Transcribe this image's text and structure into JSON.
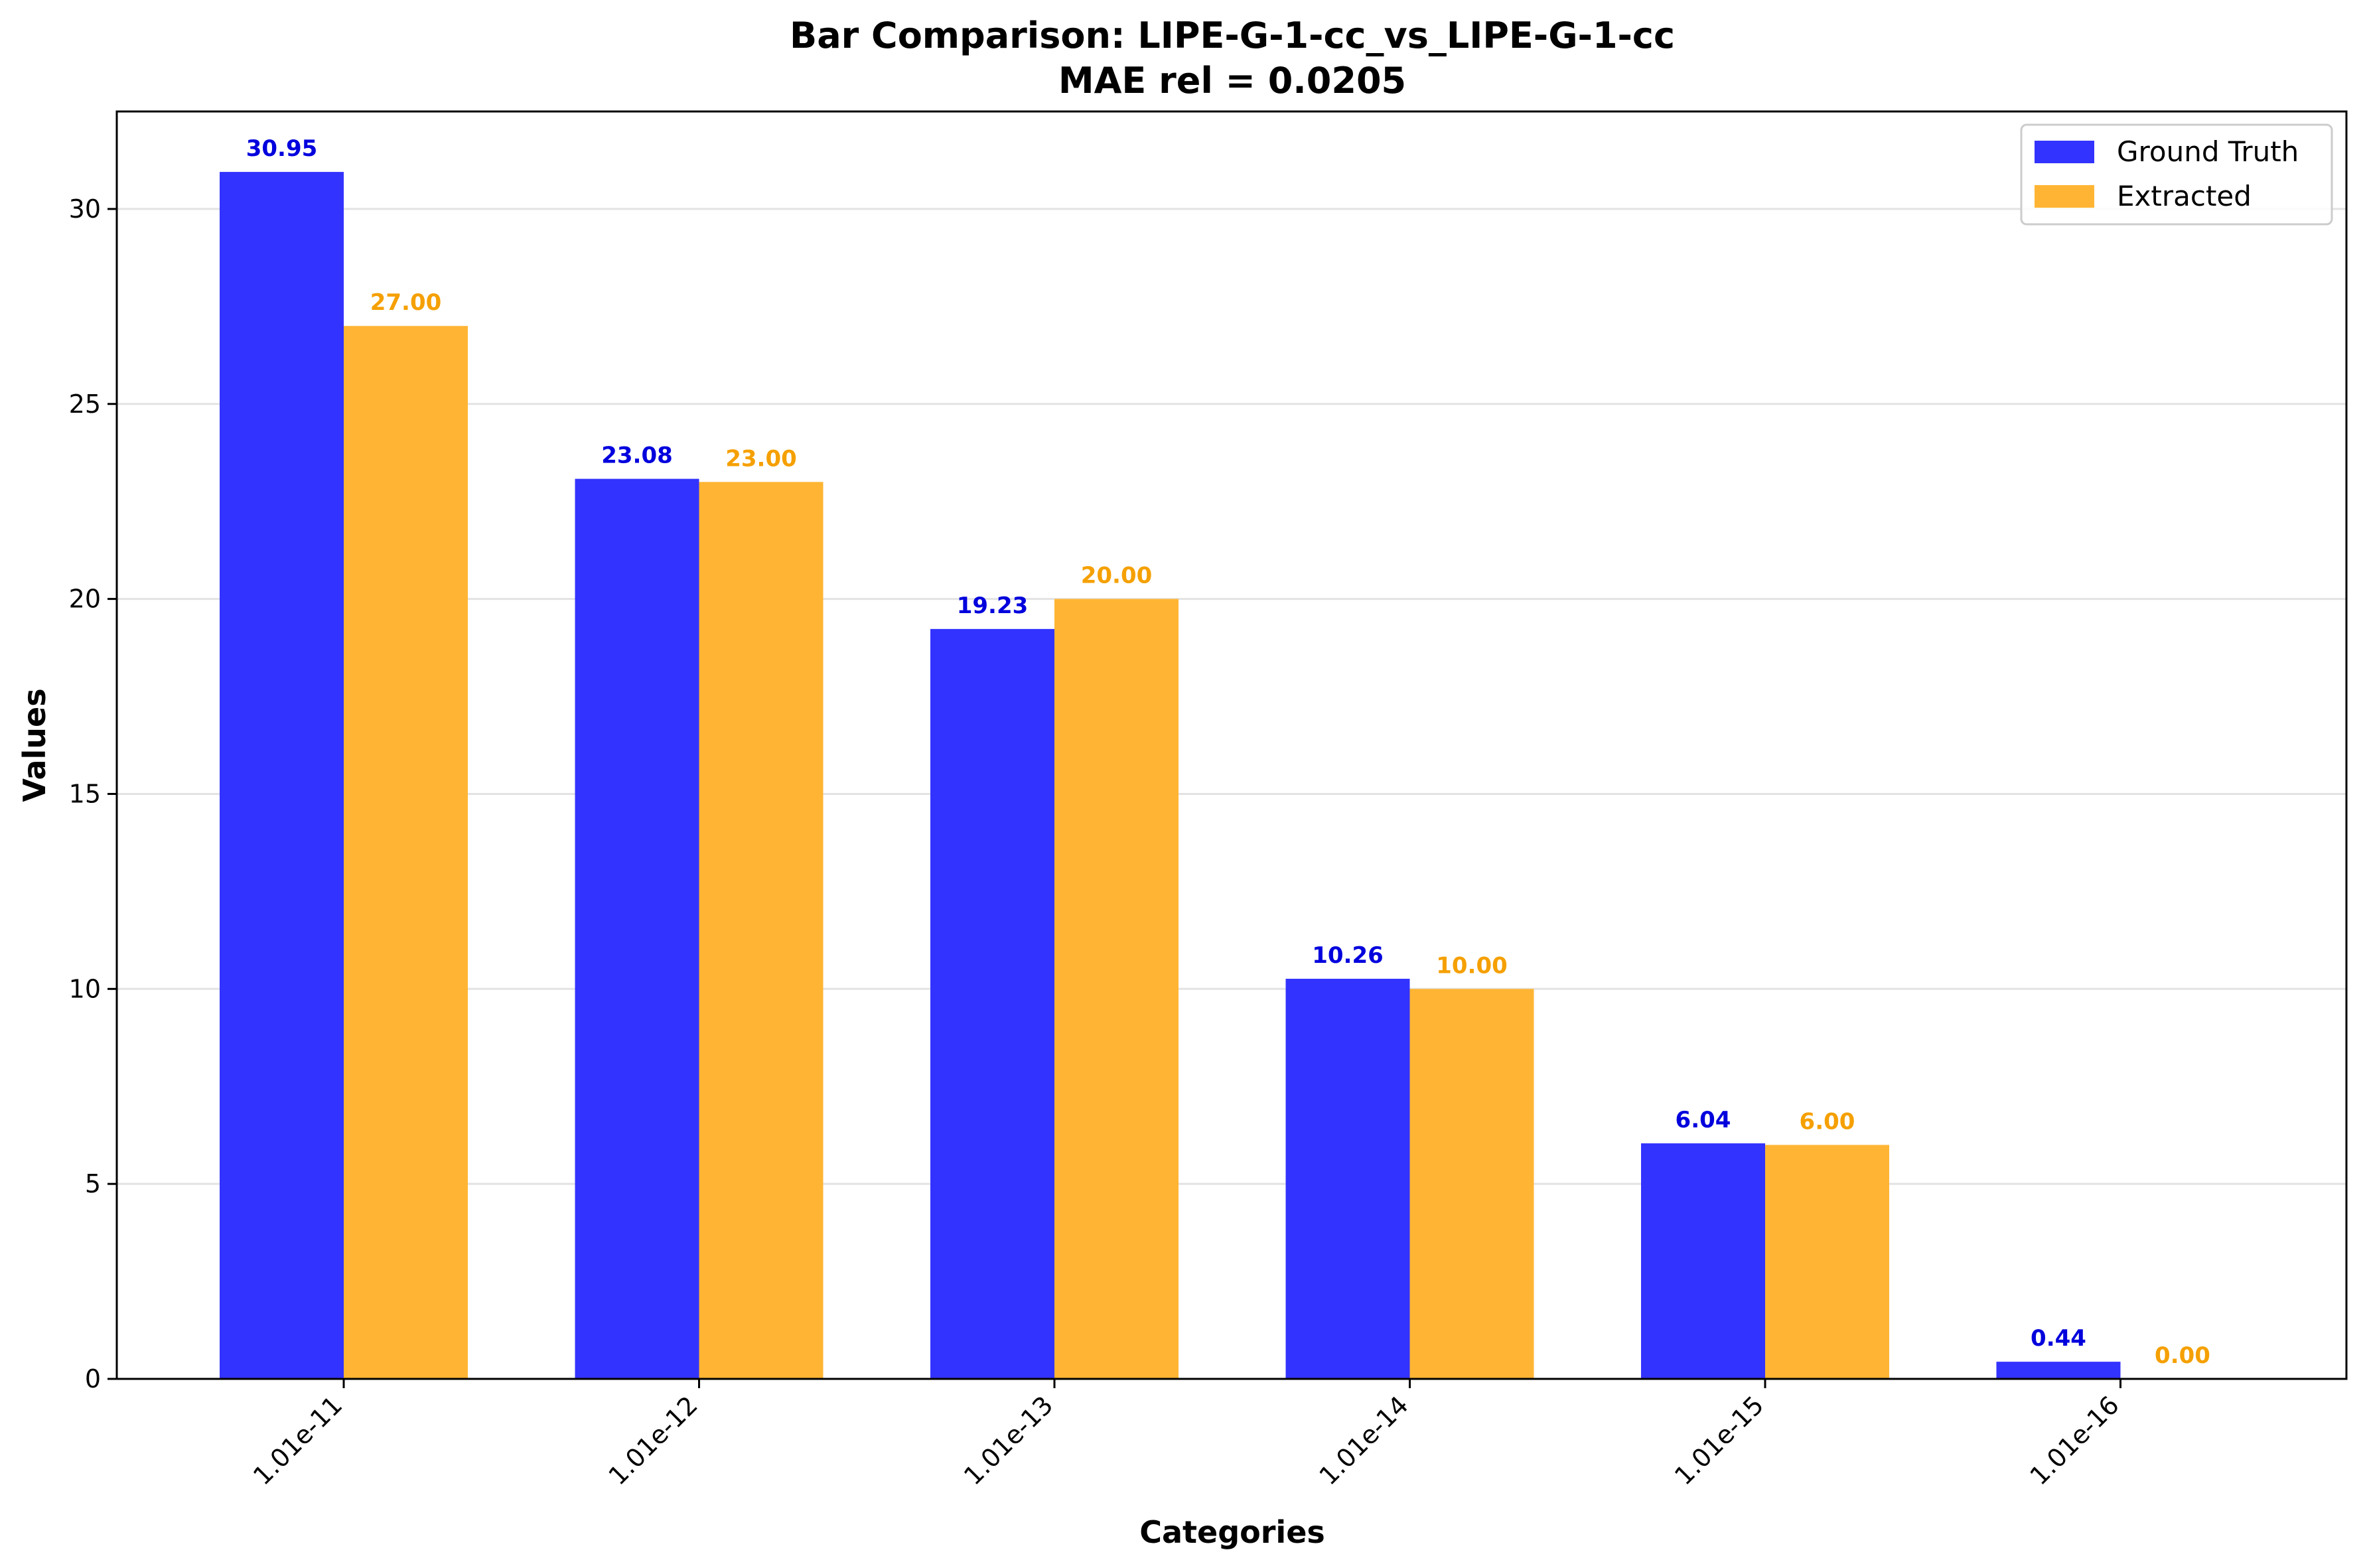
{
  "chart_data": {
    "type": "bar",
    "title": "Bar Comparison: LIPE-G-1-cc_vs_LIPE-G-1-cc",
    "subtitle": "MAE rel = 0.0205",
    "xlabel": "Categories",
    "ylabel": "Values",
    "categories": [
      "1.01e-11",
      "1.01e-12",
      "1.01e-13",
      "1.01e-14",
      "1.01e-15",
      "1.01e-16"
    ],
    "series": [
      {
        "name": "Ground Truth",
        "color": "#3333ff",
        "label_color": "#0000dd",
        "values": [
          30.95,
          23.08,
          19.23,
          10.26,
          6.04,
          0.44
        ],
        "labels": [
          "30.95",
          "23.08",
          "19.23",
          "10.26",
          "6.04",
          "0.44"
        ]
      },
      {
        "name": "Extracted",
        "color": "#ffb533",
        "label_color": "#f5a000",
        "values": [
          27.0,
          23.0,
          20.0,
          10.0,
          6.0,
          0.0
        ],
        "labels": [
          "27.00",
          "23.00",
          "20.00",
          "10.00",
          "6.00",
          "0.00"
        ]
      }
    ],
    "ylim": [
      0,
      32.5
    ],
    "yticks": [
      0,
      5,
      10,
      15,
      20,
      25,
      30
    ],
    "ytick_labels": [
      "0",
      "5",
      "10",
      "15",
      "20",
      "25",
      "30"
    ],
    "grid": "y",
    "legend_position": "top-right"
  }
}
